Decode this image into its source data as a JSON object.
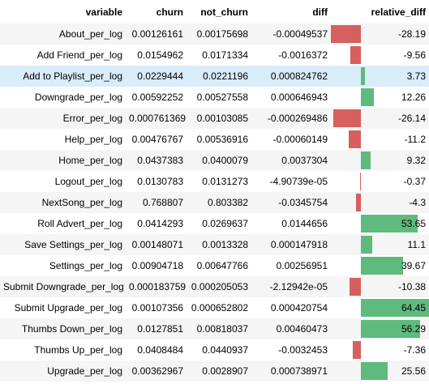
{
  "table": {
    "headers": {
      "variable": "variable",
      "churn": "churn",
      "not_churn": "not_churn",
      "diff": "diff",
      "relative_diff": "relative_diff"
    },
    "bar_colors": {
      "negative": "#d65f5f",
      "positive": "#5fba7d"
    },
    "hover_row_color": "#d9ecfa",
    "relative_diff_range": [
      -28.19,
      64.45
    ],
    "rows": [
      {
        "variable": "About_per_log",
        "churn": "0.00126161",
        "not_churn": "0.00175698",
        "diff": "-0.00049537",
        "relative_diff": "-28.19",
        "relative_diff_value": -28.19
      },
      {
        "variable": "Add Friend_per_log",
        "churn": "0.0154962",
        "not_churn": "0.0171334",
        "diff": "-0.0016372",
        "relative_diff": "-9.56",
        "relative_diff_value": -9.56
      },
      {
        "variable": "Add to Playlist_per_log",
        "churn": "0.0229444",
        "not_churn": "0.0221196",
        "diff": "0.000824762",
        "relative_diff": "3.73",
        "relative_diff_value": 3.73,
        "hovered": true
      },
      {
        "variable": "Downgrade_per_log",
        "churn": "0.00592252",
        "not_churn": "0.00527558",
        "diff": "0.000646943",
        "relative_diff": "12.26",
        "relative_diff_value": 12.26
      },
      {
        "variable": "Error_per_log",
        "churn": "0.000761369",
        "not_churn": "0.00103085",
        "diff": "-0.000269486",
        "relative_diff": "-26.14",
        "relative_diff_value": -26.14
      },
      {
        "variable": "Help_per_log",
        "churn": "0.00476767",
        "not_churn": "0.00536916",
        "diff": "-0.00060149",
        "relative_diff": "-11.2",
        "relative_diff_value": -11.2
      },
      {
        "variable": "Home_per_log",
        "churn": "0.0437383",
        "not_churn": "0.0400079",
        "diff": "0.0037304",
        "relative_diff": "9.32",
        "relative_diff_value": 9.32
      },
      {
        "variable": "Logout_per_log",
        "churn": "0.0130783",
        "not_churn": "0.0131273",
        "diff": "-4.90739e-05",
        "relative_diff": "-0.37",
        "relative_diff_value": -0.37
      },
      {
        "variable": "NextSong_per_log",
        "churn": "0.768807",
        "not_churn": "0.803382",
        "diff": "-0.0345754",
        "relative_diff": "-4.3",
        "relative_diff_value": -4.3
      },
      {
        "variable": "Roll Advert_per_log",
        "churn": "0.0414293",
        "not_churn": "0.0269637",
        "diff": "0.0144656",
        "relative_diff": "53.65",
        "relative_diff_value": 53.65
      },
      {
        "variable": "Save Settings_per_log",
        "churn": "0.00148071",
        "not_churn": "0.0013328",
        "diff": "0.000147918",
        "relative_diff": "11.1",
        "relative_diff_value": 11.1
      },
      {
        "variable": "Settings_per_log",
        "churn": "0.00904718",
        "not_churn": "0.00647766",
        "diff": "0.00256951",
        "relative_diff": "39.67",
        "relative_diff_value": 39.67
      },
      {
        "variable": "Submit Downgrade_per_log",
        "churn": "0.000183759",
        "not_churn": "0.000205053",
        "diff": "-2.12942e-05",
        "relative_diff": "-10.38",
        "relative_diff_value": -10.38
      },
      {
        "variable": "Submit Upgrade_per_log",
        "churn": "0.00107356",
        "not_churn": "0.000652802",
        "diff": "0.000420754",
        "relative_diff": "64.45",
        "relative_diff_value": 64.45
      },
      {
        "variable": "Thumbs Down_per_log",
        "churn": "0.0127851",
        "not_churn": "0.00818037",
        "diff": "0.00460473",
        "relative_diff": "56.29",
        "relative_diff_value": 56.29
      },
      {
        "variable": "Thumbs Up_per_log",
        "churn": "0.0408484",
        "not_churn": "0.0440937",
        "diff": "-0.0032453",
        "relative_diff": "-7.36",
        "relative_diff_value": -7.36
      },
      {
        "variable": "Upgrade_per_log",
        "churn": "0.00362967",
        "not_churn": "0.0028907",
        "diff": "0.000738971",
        "relative_diff": "25.56",
        "relative_diff_value": 25.56
      }
    ]
  }
}
